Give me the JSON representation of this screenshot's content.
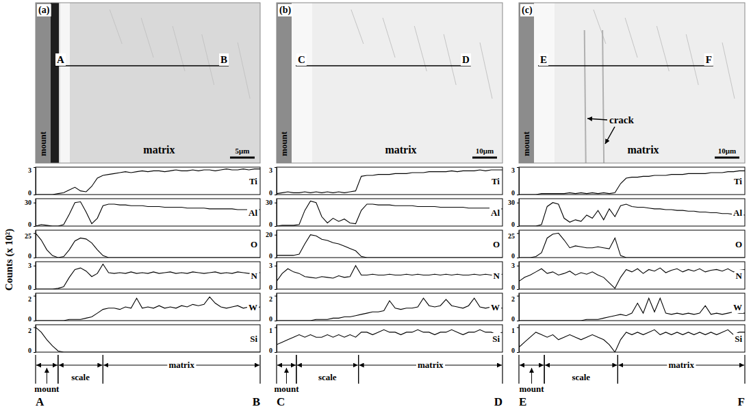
{
  "y_axis_title": "Counts (x 10²)",
  "chart_data": [
    {
      "type": "line",
      "title": "(a)",
      "tick_labels": "y",
      "xlim": [
        0,
        40
      ],
      "x": [
        0,
        1,
        2,
        3,
        4,
        5,
        6,
        7,
        8,
        9,
        10,
        11,
        12,
        13,
        14,
        15,
        16,
        17,
        18,
        19,
        20,
        21,
        22,
        23,
        24,
        25,
        26,
        27,
        28,
        29,
        30,
        31,
        32,
        33,
        34,
        35,
        36,
        37,
        38,
        39,
        40
      ],
      "scan": [
        "A",
        "B"
      ],
      "image": {
        "mount": "mount",
        "matrix": "matrix",
        "scale_bar": "5μm"
      },
      "regions": [
        {
          "label": "mount",
          "from": 0,
          "to": 4
        },
        {
          "label": "scale",
          "from": 4,
          "to": 12
        },
        {
          "label": "matrix",
          "from": 12,
          "to": 40
        }
      ],
      "series": [
        {
          "name": "Ti",
          "color": "#000000",
          "ylim": [
            0,
            3
          ],
          "yticks": [
            0,
            3
          ],
          "values": [
            0,
            0,
            0,
            0,
            0.1,
            0.2,
            0.5,
            0.8,
            0.4,
            0.3,
            0.9,
            1.8,
            2.1,
            2.2,
            2.3,
            2.4,
            2.5,
            2.4,
            2.5,
            2.6,
            2.5,
            2.6,
            2.6,
            2.5,
            2.6,
            2.7,
            2.6,
            2.6,
            2.7,
            2.6,
            2.7,
            2.7,
            2.6,
            2.7,
            2.8,
            2.7,
            2.7,
            2.8,
            2.7,
            2.8,
            2.8
          ]
        },
        {
          "name": "Al",
          "color": "#000000",
          "ylim": [
            0,
            35
          ],
          "yticks": [
            0,
            30
          ],
          "values": [
            0,
            2,
            1,
            0,
            0,
            2,
            15,
            30,
            31,
            18,
            3,
            10,
            26,
            28,
            28,
            27,
            27,
            26,
            26,
            26,
            25,
            25,
            25,
            24,
            24,
            24,
            24,
            23,
            23,
            23,
            23,
            22,
            22,
            22,
            22,
            22,
            21,
            21,
            21,
            21,
            21
          ]
        },
        {
          "name": "O",
          "color": "#000000",
          "ylim": [
            0,
            28
          ],
          "yticks": [
            0,
            25
          ],
          "values": [
            25,
            18,
            8,
            2,
            0,
            1,
            8,
            17,
            20,
            19,
            15,
            8,
            2,
            0,
            0,
            0,
            0,
            0,
            0,
            0,
            0,
            0,
            0,
            0,
            0,
            0,
            0,
            0,
            0,
            0,
            0,
            0,
            0,
            0,
            0,
            0,
            0,
            0,
            0,
            0,
            0
          ]
        },
        {
          "name": "N",
          "color": "#000000",
          "ylim": [
            0,
            3.5
          ],
          "yticks": [
            0,
            3
          ],
          "values": [
            0,
            0,
            0,
            0,
            0.1,
            0.3,
            1.5,
            2.5,
            2.7,
            2.3,
            1.6,
            2.0,
            3.2,
            2.1,
            2.0,
            2.1,
            2.0,
            2.2,
            2.0,
            2.1,
            2.0,
            2.2,
            2.0,
            2.1,
            2.2,
            2.0,
            2.1,
            2.0,
            2.2,
            2.1,
            2.0,
            2.1,
            2.2,
            2.0,
            2.1,
            2.0,
            2.2,
            2.1,
            2.0,
            2.1,
            2.1
          ]
        },
        {
          "name": "W",
          "color": "#000000",
          "ylim": [
            0,
            2.2
          ],
          "yticks": [
            0,
            2
          ],
          "values": [
            0,
            0,
            0,
            0,
            0,
            0,
            0.1,
            0.1,
            0.1,
            0.2,
            0.3,
            0.6,
            0.9,
            1.0,
            1.0,
            0.9,
            1.1,
            1.0,
            1.8,
            1.0,
            1.1,
            1.0,
            1.2,
            1.0,
            1.1,
            1.0,
            1.2,
            1.1,
            1.3,
            1.2,
            1.3,
            1.9,
            1.4,
            1.1,
            1.0,
            1.1,
            1.2,
            1.0,
            1.1,
            1.0,
            1.1
          ]
        },
        {
          "name": "Si",
          "color": "#000000",
          "ylim": [
            0,
            2.2
          ],
          "yticks": [
            0,
            2
          ],
          "values": [
            2.0,
            1.6,
            1.0,
            0.5,
            0.1,
            0,
            0,
            0,
            0,
            0,
            0,
            0,
            0,
            0,
            0,
            0,
            0,
            0,
            0,
            0,
            0,
            0,
            0,
            0,
            0,
            0,
            0,
            0,
            0,
            0,
            0,
            0,
            0,
            0,
            0,
            0,
            0,
            0,
            0,
            0,
            0
          ]
        }
      ]
    },
    {
      "type": "line",
      "title": "(b)",
      "tick_labels": "y",
      "xlim": [
        0,
        40
      ],
      "x": [
        0,
        1,
        2,
        3,
        4,
        5,
        6,
        7,
        8,
        9,
        10,
        11,
        12,
        13,
        14,
        15,
        16,
        17,
        18,
        19,
        20,
        21,
        22,
        23,
        24,
        25,
        26,
        27,
        28,
        29,
        30,
        31,
        32,
        33,
        34,
        35,
        36,
        37,
        38,
        39,
        40
      ],
      "scan": [
        "C",
        "D"
      ],
      "image": {
        "mount": "mount",
        "matrix": "matrix",
        "scale_bar": "10μm"
      },
      "regions": [
        {
          "label": "mount",
          "from": 0,
          "to": 3.5
        },
        {
          "label": "scale",
          "from": 3.5,
          "to": 14.5
        },
        {
          "label": "matrix",
          "from": 14.5,
          "to": 40
        }
      ],
      "series": [
        {
          "name": "Ti",
          "color": "#000000",
          "ylim": [
            0,
            3
          ],
          "yticks": [
            0,
            3
          ],
          "values": [
            0.1,
            0.2,
            0.3,
            0.2,
            0.2,
            0.3,
            0.2,
            0.3,
            0.2,
            0.3,
            0.2,
            0.3,
            0.2,
            0.3,
            0.4,
            2.0,
            2.1,
            2.1,
            2.2,
            2.2,
            2.2,
            2.3,
            2.3,
            2.3,
            2.4,
            2.4,
            2.4,
            2.5,
            2.5,
            2.5,
            2.5,
            2.6,
            2.5,
            2.6,
            2.6,
            2.6,
            2.7,
            2.6,
            2.7,
            2.7,
            2.7
          ]
        },
        {
          "name": "Al",
          "color": "#000000",
          "ylim": [
            0,
            35
          ],
          "yticks": [
            0,
            30
          ],
          "values": [
            0,
            1,
            1,
            1,
            2,
            20,
            32,
            30,
            12,
            4,
            10,
            6,
            9,
            4,
            3,
            20,
            28,
            28,
            27,
            27,
            27,
            26,
            26,
            26,
            26,
            25,
            25,
            25,
            25,
            24,
            24,
            24,
            24,
            24,
            23,
            23,
            23,
            23,
            23,
            22,
            22
          ]
        },
        {
          "name": "O",
          "color": "#000000",
          "ylim": [
            0,
            24
          ],
          "yticks": [
            0,
            20
          ],
          "values": [
            2,
            2,
            2,
            2,
            3,
            12,
            20,
            19,
            16,
            15,
            13,
            12,
            10,
            8,
            6,
            1,
            0,
            0,
            0,
            0,
            0,
            0,
            0,
            0,
            0,
            0,
            0,
            0,
            0,
            0,
            0,
            0,
            0,
            0,
            0,
            0,
            0,
            0,
            0,
            0,
            0
          ]
        },
        {
          "name": "N",
          "color": "#000000",
          "ylim": [
            0,
            3.5
          ],
          "yticks": [
            0,
            3
          ],
          "values": [
            1.0,
            2.0,
            2.6,
            2.2,
            2.0,
            1.6,
            1.5,
            1.4,
            1.6,
            1.5,
            1.4,
            1.7,
            1.5,
            1.6,
            3.0,
            1.8,
            1.8,
            1.9,
            1.8,
            1.8,
            1.9,
            1.8,
            1.8,
            1.9,
            1.8,
            1.9,
            1.8,
            1.8,
            1.9,
            1.8,
            1.9,
            1.8,
            1.9,
            1.8,
            1.8,
            1.9,
            1.8,
            1.9,
            1.8,
            1.8,
            1.9
          ]
        },
        {
          "name": "W",
          "color": "#000000",
          "ylim": [
            0,
            2.2
          ],
          "yticks": [
            0,
            2
          ],
          "values": [
            0,
            0,
            0,
            0,
            0,
            0,
            0,
            0.1,
            0.1,
            0.1,
            0.2,
            0.2,
            0.3,
            0.3,
            0.4,
            0.5,
            0.6,
            0.7,
            0.7,
            0.8,
            1.6,
            1.0,
            0.9,
            1.0,
            1.0,
            1.1,
            1.8,
            1.2,
            1.1,
            1.2,
            1.7,
            1.2,
            1.1,
            1.0,
            1.2,
            1.8,
            1.1,
            1.0,
            1.1,
            1.0,
            1.0
          ]
        },
        {
          "name": "Si",
          "color": "#000000",
          "ylim": [
            0,
            1.1
          ],
          "yticks": [
            0,
            1
          ],
          "values": [
            0.3,
            0.4,
            0.5,
            0.6,
            0.7,
            0.6,
            0.7,
            0.6,
            0.6,
            0.7,
            0.6,
            0.7,
            0.6,
            0.7,
            0.6,
            0.8,
            0.8,
            0.7,
            0.8,
            0.9,
            0.8,
            0.8,
            0.7,
            0.8,
            0.8,
            0.9,
            0.8,
            0.8,
            0.7,
            0.8,
            0.8,
            0.9,
            0.8,
            0.7,
            0.8,
            0.8,
            0.9,
            0.8,
            0.8,
            0.7,
            0.8
          ]
        }
      ]
    },
    {
      "type": "line",
      "title": "(c)",
      "tick_labels": "y",
      "xlim": [
        0,
        40
      ],
      "x": [
        0,
        1,
        2,
        3,
        4,
        5,
        6,
        7,
        8,
        9,
        10,
        11,
        12,
        13,
        14,
        15,
        16,
        17,
        18,
        19,
        20,
        21,
        22,
        23,
        24,
        25,
        26,
        27,
        28,
        29,
        30,
        31,
        32,
        33,
        34,
        35,
        36,
        37,
        38,
        39,
        40
      ],
      "scan": [
        "E",
        "F"
      ],
      "image": {
        "mount": "mount",
        "matrix": "matrix",
        "scale_bar": "10μm",
        "crack": "crack"
      },
      "regions": [
        {
          "label": "mount",
          "from": 0,
          "to": 4.5
        },
        {
          "label": "scale",
          "from": 4.5,
          "to": 17.5
        },
        {
          "label": "matrix",
          "from": 17.5,
          "to": 40
        }
      ],
      "series": [
        {
          "name": "Ti",
          "color": "#000000",
          "ylim": [
            0,
            3
          ],
          "yticks": [
            0,
            3
          ],
          "values": [
            0,
            0,
            0,
            0,
            0.1,
            0.1,
            0.1,
            0.1,
            0.1,
            0.2,
            0.1,
            0.2,
            0.1,
            0.2,
            0.1,
            0.2,
            0.1,
            0.2,
            1.2,
            1.8,
            1.9,
            1.9,
            2.0,
            2.0,
            2.1,
            2.1,
            2.1,
            2.2,
            2.2,
            2.2,
            2.3,
            2.3,
            2.3,
            2.3,
            2.4,
            2.4,
            2.4,
            2.5,
            2.5,
            2.6,
            2.6
          ]
        },
        {
          "name": "Al",
          "color": "#000000",
          "ylim": [
            0,
            35
          ],
          "yticks": [
            0,
            30
          ],
          "values": [
            0,
            0,
            0,
            0,
            2,
            25,
            30,
            28,
            10,
            5,
            8,
            6,
            14,
            10,
            20,
            8,
            22,
            12,
            26,
            28,
            25,
            24,
            24,
            23,
            22,
            22,
            21,
            21,
            20,
            20,
            19,
            19,
            18,
            18,
            17,
            17,
            16,
            16,
            15,
            15,
            14
          ]
        },
        {
          "name": "O",
          "color": "#000000",
          "ylim": [
            0,
            28
          ],
          "yticks": [
            0,
            25
          ],
          "values": [
            0,
            0,
            0,
            1,
            5,
            20,
            24,
            25,
            18,
            10,
            12,
            11,
            10,
            10,
            11,
            10,
            9,
            20,
            2,
            0,
            0,
            0,
            0,
            0,
            0,
            0,
            0,
            0,
            0,
            0,
            0,
            0,
            0,
            0,
            0,
            0,
            0,
            0,
            0,
            0,
            0
          ]
        },
        {
          "name": "N",
          "color": "#000000",
          "ylim": [
            0,
            3.5
          ],
          "yticks": [
            0,
            3
          ],
          "values": [
            1.0,
            1.5,
            1.8,
            2.2,
            2.6,
            2.0,
            2.2,
            1.8,
            2.0,
            2.3,
            1.8,
            2.1,
            1.9,
            2.2,
            1.8,
            1.5,
            0.8,
            0.1,
            1.5,
            2.5,
            2.2,
            2.6,
            2.0,
            2.5,
            2.3,
            2.7,
            2.1,
            2.4,
            2.6,
            2.2,
            2.5,
            2.3,
            2.6,
            2.2,
            2.4,
            2.5,
            2.3,
            2.6,
            2.2,
            2.4,
            2.5
          ]
        },
        {
          "name": "W",
          "color": "#000000",
          "ylim": [
            0,
            2.2
          ],
          "yticks": [
            0,
            2
          ],
          "values": [
            0,
            0,
            0,
            0,
            0,
            0,
            0,
            0,
            0,
            0,
            0,
            0,
            0.1,
            0.1,
            0.1,
            0.2,
            0.3,
            0.4,
            0.5,
            0.4,
            0.6,
            1.4,
            0.6,
            1.8,
            0.7,
            1.8,
            0.6,
            0.5,
            0.6,
            0.5,
            0.6,
            0.5,
            0.6,
            1.2,
            0.5,
            0.6,
            0.5,
            0.6,
            0.7,
            0.6,
            0.6
          ]
        },
        {
          "name": "Si",
          "color": "#000000",
          "ylim": [
            0,
            1.1
          ],
          "yticks": [
            0,
            1
          ],
          "values": [
            0.2,
            0.4,
            0.6,
            0.8,
            0.7,
            0.6,
            0.7,
            0.5,
            0.6,
            0.7,
            0.6,
            0.5,
            0.6,
            0.7,
            0.6,
            0.5,
            0.3,
            0.0,
            0.5,
            0.8,
            0.7,
            0.8,
            0.7,
            0.8,
            0.9,
            0.7,
            0.8,
            0.7,
            0.8,
            0.7,
            0.8,
            0.7,
            0.8,
            0.7,
            0.8,
            0.7,
            0.8,
            0.9,
            0.7,
            0.8,
            0.8
          ]
        }
      ]
    }
  ]
}
